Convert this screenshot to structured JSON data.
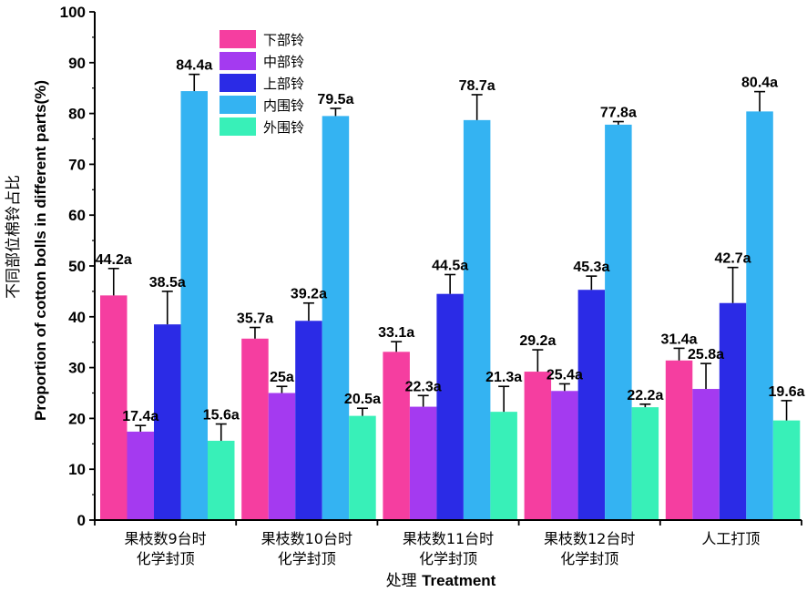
{
  "chart_data": {
    "type": "bar",
    "categories": [
      [
        "果枝数9台时",
        "化学封顶"
      ],
      [
        "果枝数10台时",
        "化学封顶"
      ],
      [
        "果枝数11台时",
        "化学封顶"
      ],
      [
        "果枝数12台时",
        "化学封顶"
      ],
      [
        "人工打顶"
      ]
    ],
    "series": [
      {
        "name": "下部铃",
        "color": "#f53ea0",
        "values": [
          44.2,
          35.7,
          33.1,
          29.2,
          31.4
        ],
        "errors": [
          5.3,
          2.2,
          2.0,
          4.3,
          2.4
        ],
        "labels": [
          "44.2a",
          "35.7a",
          "33.1a",
          "29.2a",
          "31.4a"
        ]
      },
      {
        "name": "中部铃",
        "color": "#a43af0",
        "values": [
          17.4,
          25.0,
          22.3,
          25.4,
          25.8
        ],
        "errors": [
          1.2,
          1.3,
          2.2,
          1.4,
          5.0
        ],
        "labels": [
          "17.4a",
          "25a",
          "22.3a",
          "25.4a",
          "25.8a"
        ]
      },
      {
        "name": "上部铃",
        "color": "#2b2be6",
        "values": [
          38.5,
          39.2,
          44.5,
          45.3,
          42.7
        ],
        "errors": [
          6.5,
          3.5,
          3.8,
          2.7,
          7.0
        ],
        "labels": [
          "38.5a",
          "39.2a",
          "44.5a",
          "45.3a",
          "42.7a"
        ]
      },
      {
        "name": "内围铃",
        "color": "#34b3f2",
        "values": [
          84.4,
          79.5,
          78.7,
          77.8,
          80.4
        ],
        "errors": [
          3.3,
          1.5,
          5.0,
          0.6,
          3.9
        ],
        "labels": [
          "84.4a",
          "79.5a",
          "78.7a",
          "77.8a",
          "80.4a"
        ]
      },
      {
        "name": "外围铃",
        "color": "#38f0b8",
        "values": [
          15.6,
          20.5,
          21.3,
          22.2,
          19.6
        ],
        "errors": [
          3.3,
          1.5,
          5.0,
          0.6,
          3.9
        ],
        "labels": [
          "15.6a",
          "20.5a",
          "21.3a",
          "22.2a",
          "19.6a"
        ]
      }
    ],
    "ylim": [
      0,
      100
    ],
    "yticks": [
      0,
      10,
      20,
      30,
      40,
      50,
      60,
      70,
      80,
      90,
      100
    ],
    "ylabel_cn": "不同部位棉铃占比",
    "ylabel_en": "Proportion of cotton bolls in different parts(%)",
    "xlabel_cn": "处理",
    "xlabel_en": "Treatment",
    "legend_position": "top-left"
  }
}
